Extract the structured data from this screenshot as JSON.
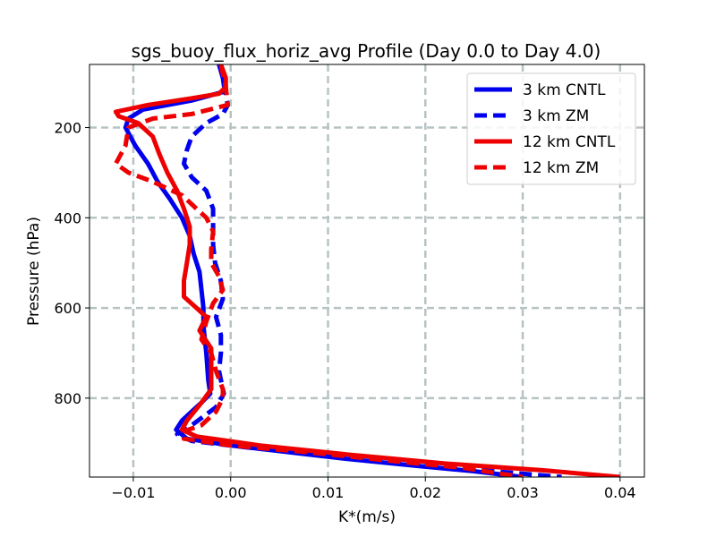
{
  "chart_data": {
    "type": "line",
    "title": "sgs_buoy_flux_horiz_avg Profile (Day 0.0 to Day 4.0)",
    "xlabel": "K*(m/s)",
    "ylabel": "Pressure (hPa)",
    "xlim": [
      -0.0145,
      0.0425
    ],
    "ylim": [
      975,
      60
    ],
    "y_inverted": true,
    "grid": true,
    "legend_position": "top-right",
    "xticks": [
      -0.01,
      0.0,
      0.01,
      0.02,
      0.03,
      0.04
    ],
    "xtick_labels": [
      "−0.01",
      "0.00",
      "0.01",
      "0.02",
      "0.03",
      "0.04"
    ],
    "yticks": [
      200,
      400,
      600,
      800
    ],
    "ytick_labels": [
      "200",
      "400",
      "600",
      "800"
    ],
    "series": [
      {
        "name": "3 km CNTL",
        "color": "#0000ee",
        "dash": "solid",
        "points": [
          [
            -0.0012,
            60
          ],
          [
            -0.0008,
            90
          ],
          [
            -0.0006,
            120
          ],
          [
            -0.004,
            140
          ],
          [
            -0.009,
            160
          ],
          [
            -0.0105,
            180
          ],
          [
            -0.0108,
            200
          ],
          [
            -0.0098,
            240
          ],
          [
            -0.0085,
            280
          ],
          [
            -0.0075,
            320
          ],
          [
            -0.0062,
            360
          ],
          [
            -0.005,
            400
          ],
          [
            -0.0042,
            440
          ],
          [
            -0.0038,
            480
          ],
          [
            -0.0032,
            520
          ],
          [
            -0.003,
            560
          ],
          [
            -0.0028,
            600
          ],
          [
            -0.0028,
            640
          ],
          [
            -0.0025,
            700
          ],
          [
            -0.0023,
            760
          ],
          [
            -0.0021,
            790
          ],
          [
            -0.003,
            810
          ],
          [
            -0.004,
            830
          ],
          [
            -0.005,
            850
          ],
          [
            -0.0056,
            870
          ],
          [
            -0.0045,
            890
          ],
          [
            0.0,
            905
          ],
          [
            0.006,
            920
          ],
          [
            0.012,
            935
          ],
          [
            0.019,
            950
          ],
          [
            0.025,
            962
          ],
          [
            0.03,
            975
          ]
        ]
      },
      {
        "name": "3 km ZM",
        "color": "#0000ee",
        "dash": "dashed",
        "points": [
          [
            -0.0012,
            60
          ],
          [
            -0.0006,
            100
          ],
          [
            -0.0005,
            130
          ],
          [
            -0.0003,
            150
          ],
          [
            -0.0008,
            170
          ],
          [
            -0.0025,
            190
          ],
          [
            -0.004,
            220
          ],
          [
            -0.0045,
            250
          ],
          [
            -0.0048,
            280
          ],
          [
            -0.004,
            310
          ],
          [
            -0.0025,
            340
          ],
          [
            -0.0018,
            380
          ],
          [
            -0.0018,
            420
          ],
          [
            -0.0018,
            460
          ],
          [
            -0.0016,
            500
          ],
          [
            -0.001,
            540
          ],
          [
            -0.0008,
            580
          ],
          [
            -0.0015,
            620
          ],
          [
            -0.001,
            660
          ],
          [
            -0.001,
            700
          ],
          [
            -0.0012,
            740
          ],
          [
            -0.0007,
            790
          ],
          [
            -0.0015,
            820
          ],
          [
            -0.004,
            860
          ],
          [
            -0.0055,
            880
          ],
          [
            -0.004,
            895
          ],
          [
            0.002,
            910
          ],
          [
            0.01,
            928
          ],
          [
            0.018,
            945
          ],
          [
            0.027,
            962
          ],
          [
            0.034,
            975
          ]
        ]
      },
      {
        "name": "12 km CNTL",
        "color": "#ee0000",
        "dash": "solid",
        "points": [
          [
            -0.001,
            60
          ],
          [
            -0.0005,
            90
          ],
          [
            -0.0005,
            110
          ],
          [
            -0.0012,
            125
          ],
          [
            -0.004,
            135
          ],
          [
            -0.0085,
            150
          ],
          [
            -0.0118,
            165
          ],
          [
            -0.0115,
            175
          ],
          [
            -0.0095,
            190
          ],
          [
            -0.008,
            220
          ],
          [
            -0.0073,
            260
          ],
          [
            -0.0065,
            300
          ],
          [
            -0.0055,
            340
          ],
          [
            -0.0048,
            380
          ],
          [
            -0.0042,
            420
          ],
          [
            -0.0042,
            460
          ],
          [
            -0.0045,
            500
          ],
          [
            -0.0048,
            540
          ],
          [
            -0.0048,
            575
          ],
          [
            -0.0035,
            600
          ],
          [
            -0.0025,
            620
          ],
          [
            -0.0032,
            650
          ],
          [
            -0.002,
            690
          ],
          [
            -0.002,
            730
          ],
          [
            -0.002,
            780
          ],
          [
            -0.003,
            810
          ],
          [
            -0.0045,
            850
          ],
          [
            -0.005,
            870
          ],
          [
            -0.0035,
            885
          ],
          [
            0.003,
            905
          ],
          [
            0.012,
            925
          ],
          [
            0.022,
            945
          ],
          [
            0.032,
            960
          ],
          [
            0.04,
            975
          ]
        ]
      },
      {
        "name": "12 km ZM",
        "color": "#ee0000",
        "dash": "dashed",
        "points": [
          [
            -0.001,
            60
          ],
          [
            -0.0005,
            110
          ],
          [
            -0.0003,
            150
          ],
          [
            -0.004,
            170
          ],
          [
            -0.008,
            180
          ],
          [
            -0.0105,
            200
          ],
          [
            -0.0108,
            240
          ],
          [
            -0.0118,
            280
          ],
          [
            -0.0105,
            300
          ],
          [
            -0.008,
            320
          ],
          [
            -0.005,
            350
          ],
          [
            -0.0035,
            380
          ],
          [
            -0.0025,
            400
          ],
          [
            -0.0018,
            430
          ],
          [
            -0.002,
            470
          ],
          [
            -0.002,
            500
          ],
          [
            -0.0012,
            530
          ],
          [
            -0.0008,
            560
          ],
          [
            -0.0018,
            590
          ],
          [
            -0.0025,
            630
          ],
          [
            -0.003,
            670
          ],
          [
            -0.002,
            700
          ],
          [
            -0.0015,
            740
          ],
          [
            -0.0008,
            780
          ],
          [
            -0.0008,
            800
          ],
          [
            -0.0015,
            830
          ],
          [
            -0.003,
            860
          ],
          [
            -0.005,
            875
          ],
          [
            -0.0048,
            890
          ],
          [
            0.0,
            905
          ],
          [
            0.008,
            920
          ],
          [
            0.016,
            938
          ],
          [
            0.024,
            955
          ],
          [
            0.03,
            975
          ]
        ]
      }
    ]
  }
}
